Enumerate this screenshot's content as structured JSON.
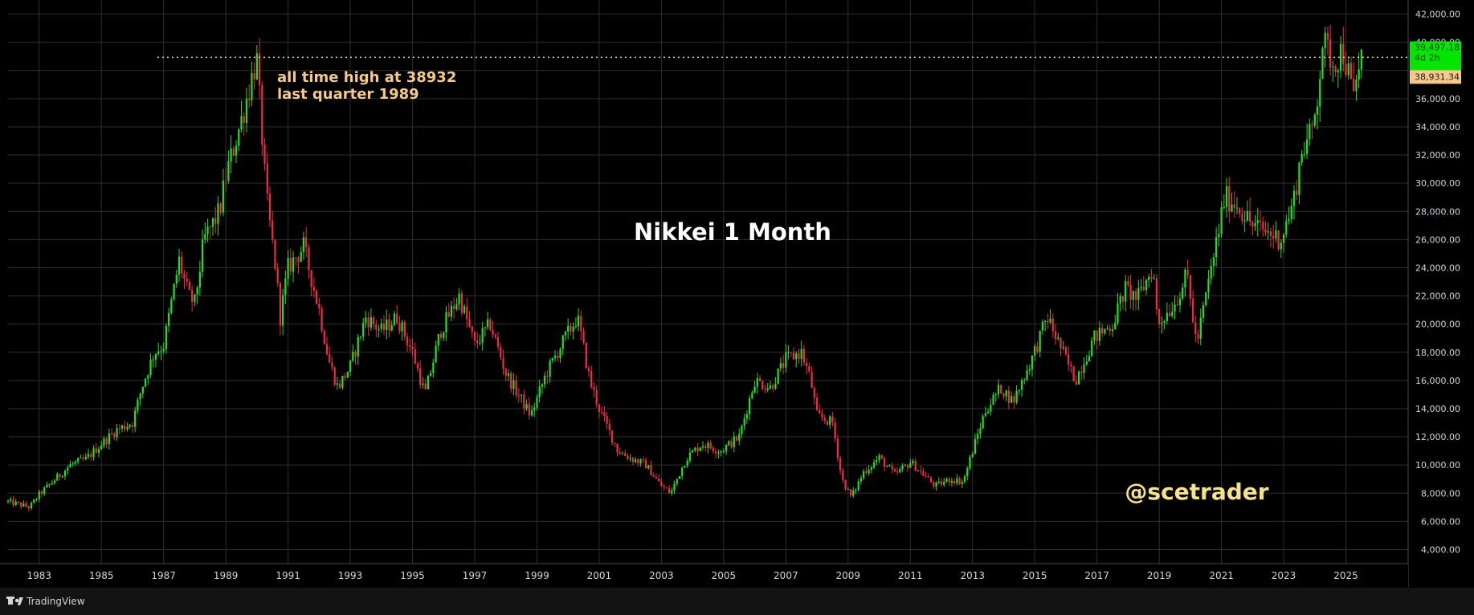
{
  "app": {
    "brand_label": "TradingView",
    "brand_icon": "tradingview-logo-icon"
  },
  "colors": {
    "background": "#000000",
    "grid": "#2f2f2f",
    "up_candle": "#22dd22",
    "down_candle": "#ee2a44",
    "annotation": "#f5c98a",
    "watermark": "#f7e48a",
    "current_price_badge": "#00e600",
    "ath_badge": "#f5c98a",
    "ath_line": "#f5d7a0"
  },
  "chart_data": {
    "type": "candlestick",
    "title": "Nikkei 1 Month",
    "watermark": "@scetrader",
    "interval": "1 Month",
    "x_range": [
      1982.0,
      2027.0
    ],
    "y_range": [
      3000,
      43000
    ],
    "grid": true,
    "y_ticks": [
      "4,000.00",
      "6,000.00",
      "8,000.00",
      "10,000.00",
      "12,000.00",
      "14,000.00",
      "16,000.00",
      "18,000.00",
      "20,000.00",
      "22,000.00",
      "24,000.00",
      "26,000.00",
      "28,000.00",
      "30,000.00",
      "32,000.00",
      "34,000.00",
      "36,000.00",
      "38,000.00",
      "40,000.00",
      "42,000.00"
    ],
    "y_tick_values": [
      4000,
      6000,
      8000,
      10000,
      12000,
      14000,
      16000,
      18000,
      20000,
      22000,
      24000,
      26000,
      28000,
      30000,
      32000,
      34000,
      36000,
      38000,
      40000,
      42000
    ],
    "x_ticks": [
      "1983",
      "1985",
      "1987",
      "1989",
      "1991",
      "1993",
      "1995",
      "1997",
      "1999",
      "2001",
      "2003",
      "2005",
      "2007",
      "2009",
      "2011",
      "2013",
      "2015",
      "2017",
      "2019",
      "2021",
      "2023",
      "2025"
    ],
    "annotation": {
      "lines": [
        "all time high at 38932",
        "last quarter 1989"
      ],
      "ath_level": 38932,
      "ath_line_from_year": 1986.8
    },
    "current_price": {
      "value": 39497.18,
      "label": "39,497.18",
      "countdown": "4d 2h"
    },
    "ath_price_label": {
      "value": 38931.34,
      "label": "38,931.34"
    },
    "series_anchors": [
      [
        1982.0,
        7400
      ],
      [
        1982.7,
        7000
      ],
      [
        1983.0,
        7900
      ],
      [
        1984.0,
        10000
      ],
      [
        1984.5,
        10400
      ],
      [
        1985.0,
        11500
      ],
      [
        1985.5,
        12500
      ],
      [
        1986.0,
        13000
      ],
      [
        1986.3,
        15500
      ],
      [
        1986.7,
        18000
      ],
      [
        1987.0,
        18500
      ],
      [
        1987.5,
        24500
      ],
      [
        1987.8,
        22000
      ],
      [
        1988.0,
        21500
      ],
      [
        1988.3,
        26000
      ],
      [
        1988.8,
        28000
      ],
      [
        1989.0,
        30500
      ],
      [
        1989.5,
        34500
      ],
      [
        1989.99,
        38900
      ],
      [
        1990.3,
        29000
      ],
      [
        1990.6,
        24000
      ],
      [
        1990.75,
        20500
      ],
      [
        1991.0,
        24000
      ],
      [
        1991.5,
        25500
      ],
      [
        1992.0,
        21000
      ],
      [
        1992.3,
        17500
      ],
      [
        1992.6,
        15500
      ],
      [
        1993.0,
        17000
      ],
      [
        1993.5,
        20500
      ],
      [
        1994.0,
        19500
      ],
      [
        1994.5,
        20500
      ],
      [
        1995.0,
        18000
      ],
      [
        1995.4,
        15000
      ],
      [
        1995.9,
        19500
      ],
      [
        1996.5,
        22000
      ],
      [
        1997.0,
        18500
      ],
      [
        1997.5,
        20000
      ],
      [
        1998.0,
        16500
      ],
      [
        1998.8,
        13500
      ],
      [
        1999.3,
        16500
      ],
      [
        1999.9,
        19000
      ],
      [
        2000.3,
        20500
      ],
      [
        2000.7,
        16000
      ],
      [
        2001.0,
        14000
      ],
      [
        2001.6,
        11000
      ],
      [
        2002.0,
        10500
      ],
      [
        2002.5,
        10000
      ],
      [
        2003.0,
        8500
      ],
      [
        2003.3,
        8000
      ],
      [
        2003.8,
        10500
      ],
      [
        2004.3,
        11500
      ],
      [
        2004.9,
        11000
      ],
      [
        2005.5,
        12000
      ],
      [
        2006.0,
        16000
      ],
      [
        2006.5,
        15500
      ],
      [
        2007.0,
        17500
      ],
      [
        2007.5,
        18000
      ],
      [
        2007.8,
        16000
      ],
      [
        2008.0,
        13500
      ],
      [
        2008.5,
        13000
      ],
      [
        2008.8,
        9000
      ],
      [
        2009.1,
        7700
      ],
      [
        2009.5,
        9500
      ],
      [
        2010.0,
        10500
      ],
      [
        2010.5,
        9300
      ],
      [
        2011.0,
        10200
      ],
      [
        2011.3,
        9600
      ],
      [
        2011.8,
        8500
      ],
      [
        2012.3,
        9000
      ],
      [
        2012.7,
        8800
      ],
      [
        2013.0,
        11000
      ],
      [
        2013.4,
        13800
      ],
      [
        2013.9,
        15500
      ],
      [
        2014.3,
        14500
      ],
      [
        2014.9,
        17500
      ],
      [
        2015.4,
        20500
      ],
      [
        2015.8,
        18500
      ],
      [
        2016.3,
        16000
      ],
      [
        2016.9,
        19000
      ],
      [
        2017.5,
        20000
      ],
      [
        2017.9,
        22500
      ],
      [
        2018.3,
        21800
      ],
      [
        2018.8,
        24000
      ],
      [
        2018.95,
        20000
      ],
      [
        2019.5,
        21500
      ],
      [
        2019.9,
        23500
      ],
      [
        2020.2,
        18500
      ],
      [
        2020.5,
        22000
      ],
      [
        2020.9,
        26500
      ],
      [
        2021.1,
        29000
      ],
      [
        2021.5,
        28500
      ],
      [
        2022.0,
        27000
      ],
      [
        2022.5,
        26500
      ],
      [
        2022.9,
        26000
      ],
      [
        2023.3,
        28500
      ],
      [
        2023.6,
        32500
      ],
      [
        2023.9,
        33500
      ],
      [
        2024.1,
        36500
      ],
      [
        2024.25,
        40000
      ],
      [
        2024.5,
        39000
      ],
      [
        2024.6,
        38500
      ],
      [
        2024.9,
        39500
      ],
      [
        2025.1,
        37500
      ],
      [
        2025.25,
        36000
      ],
      [
        2025.5,
        39497
      ]
    ]
  }
}
